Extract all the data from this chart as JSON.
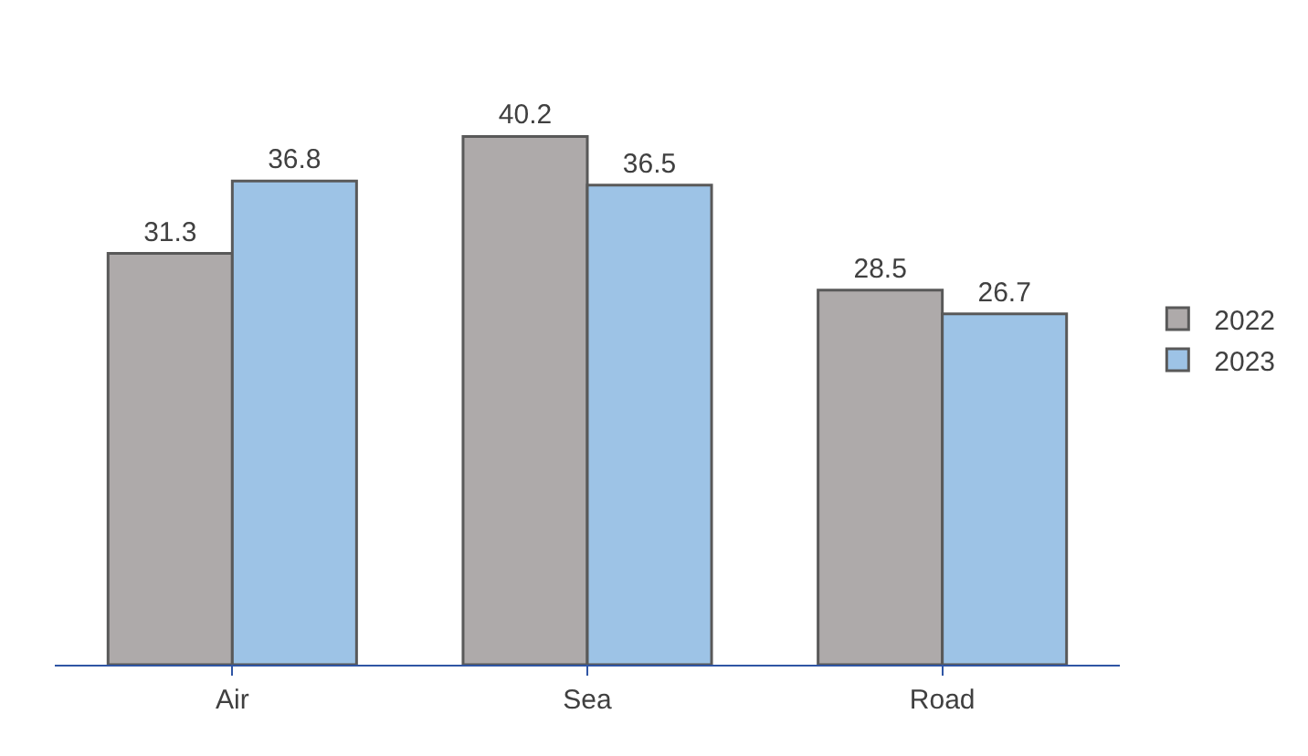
{
  "chart_data": {
    "type": "bar",
    "categories": [
      "Air",
      "Sea",
      "Road"
    ],
    "series": [
      {
        "name": "2022",
        "color": "#aeaaaa",
        "values": [
          31.3,
          40.2,
          28.5
        ]
      },
      {
        "name": "2023",
        "color": "#9dc3e6",
        "values": [
          36.8,
          36.5,
          26.7
        ]
      }
    ],
    "data_labels": true,
    "legend": "right"
  }
}
